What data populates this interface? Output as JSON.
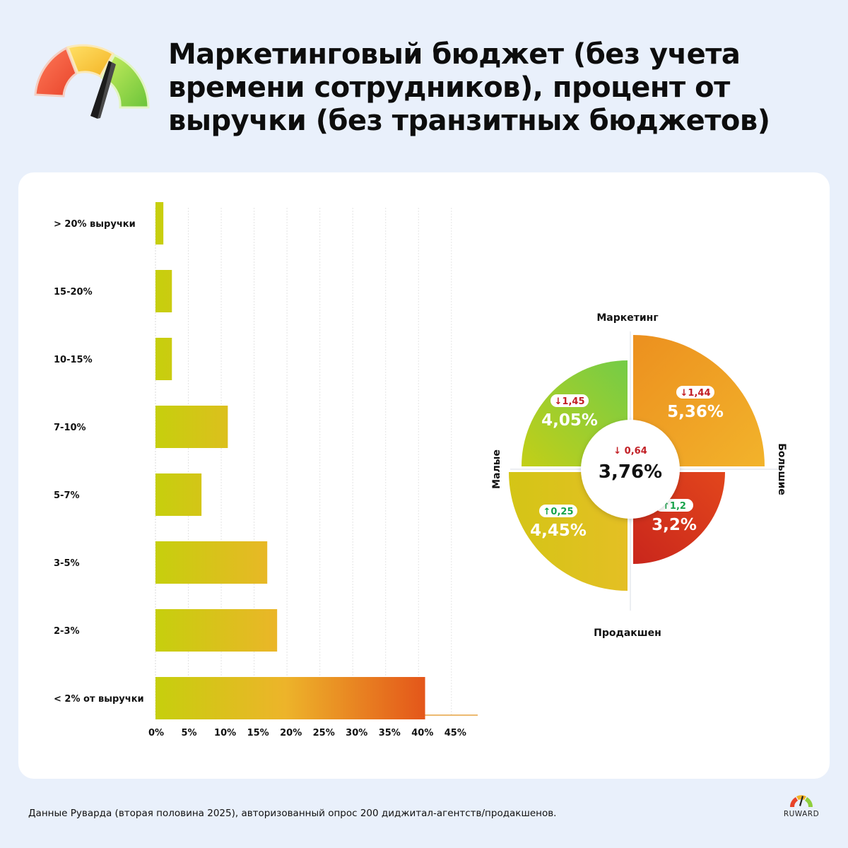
{
  "title": "Маркетинговый бюджет (без учета времени сотрудников), процент от выручки (без транзитных бюджетов)",
  "footer": "Данные Руварда (вторая половина 2025), авторизованный опрос 200 диджитал-агентств/продакшенов.",
  "brand": "RUWARD",
  "colors": {
    "background": "#e9f0fb",
    "bar_start": "#c6cf0d",
    "bar_mid": "#edb42a",
    "bar_end": "#e4561a",
    "delta_down": "#c21f25",
    "delta_up": "#17a34a"
  },
  "chart_data": [
    {
      "type": "bar",
      "orientation": "horizontal",
      "categories": [
        "> 20% выручки",
        "15-20%",
        "10-15%",
        "7-10%",
        "5-7%",
        "3-5%",
        "2-3%",
        "< 2% от выручки"
      ],
      "values": [
        1.2,
        2.5,
        2.5,
        11,
        7,
        17,
        18.5,
        41
      ],
      "xticks": [
        "0%",
        "5%",
        "10%",
        "15%",
        "20%",
        "25%",
        "30%",
        "35%",
        "40%",
        "45%"
      ],
      "xlim": [
        0,
        49
      ],
      "grid": true,
      "legend": "none"
    },
    {
      "type": "quadrant",
      "axes": {
        "top": "Маркетинг",
        "bottom": "Продакшен",
        "left": "Малые",
        "right": "Большие"
      },
      "center": {
        "value": "3,76%",
        "delta": "↓ 0,64",
        "direction": "down"
      },
      "quadrants": [
        {
          "position": "top-left",
          "value": "4,05%",
          "delta": "↓1,45",
          "direction": "down",
          "color": "#9ccf35"
        },
        {
          "position": "top-right",
          "value": "5,36%",
          "delta": "↓1,44",
          "direction": "down",
          "color": "#eea325"
        },
        {
          "position": "bottom-left",
          "value": "4,45%",
          "delta": "↑0,25",
          "direction": "up",
          "color": "#d2c41a"
        },
        {
          "position": "bottom-right",
          "value": "3,2%",
          "delta": "↑1,2",
          "direction": "up",
          "color": "#d93a1d"
        }
      ]
    }
  ]
}
